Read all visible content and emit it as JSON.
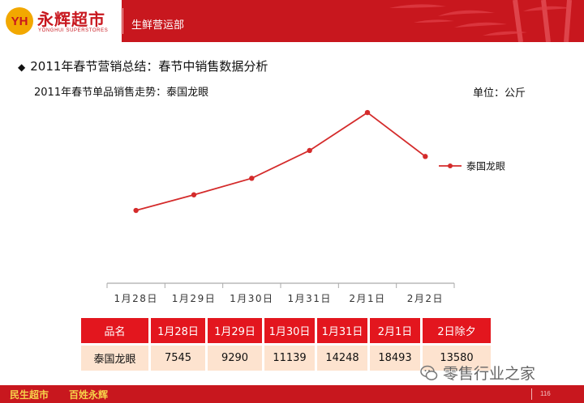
{
  "header": {
    "logo_mark": "YH",
    "logo_name": "永辉超市",
    "logo_sub": "YONGHUI SUPERSTORES",
    "department": "生鲜营运部"
  },
  "headline": "2011年春节营销总结：春节中销售数据分析",
  "unit_label": "单位：公斤",
  "chart_data": {
    "type": "line",
    "title": "2011年春节单品销售走势：泰国龙眼",
    "categories": [
      "1月28日",
      "1月29日",
      "1月30日",
      "1月31日",
      "2月1日",
      "2月2日"
    ],
    "series": [
      {
        "name": "泰国龙眼",
        "values": [
          7545,
          9290,
          11139,
          14248,
          18493,
          13580
        ],
        "color": "#d42b2b"
      }
    ],
    "ylim": [
      -600,
      20400
    ],
    "grid": false,
    "legend": "right",
    "ylabel": "单位：公斤"
  },
  "table": {
    "header_label": "品名",
    "columns": [
      "1月28日",
      "1月29日",
      "1月30日",
      "1月31日",
      "2月1日",
      "2日除夕"
    ],
    "row_label": "泰国龙眼",
    "values": [
      "7545",
      "9290",
      "11139",
      "14248",
      "18493",
      "13580"
    ]
  },
  "footer": {
    "left1": "民生超市",
    "left2": "百姓永辉",
    "page_number": "116"
  },
  "watermark": "零售行业之家",
  "colors": {
    "brand_red": "#c8171e",
    "table_header": "#e3161e",
    "table_cell": "#fde3cf",
    "line": "#d42b2b"
  }
}
